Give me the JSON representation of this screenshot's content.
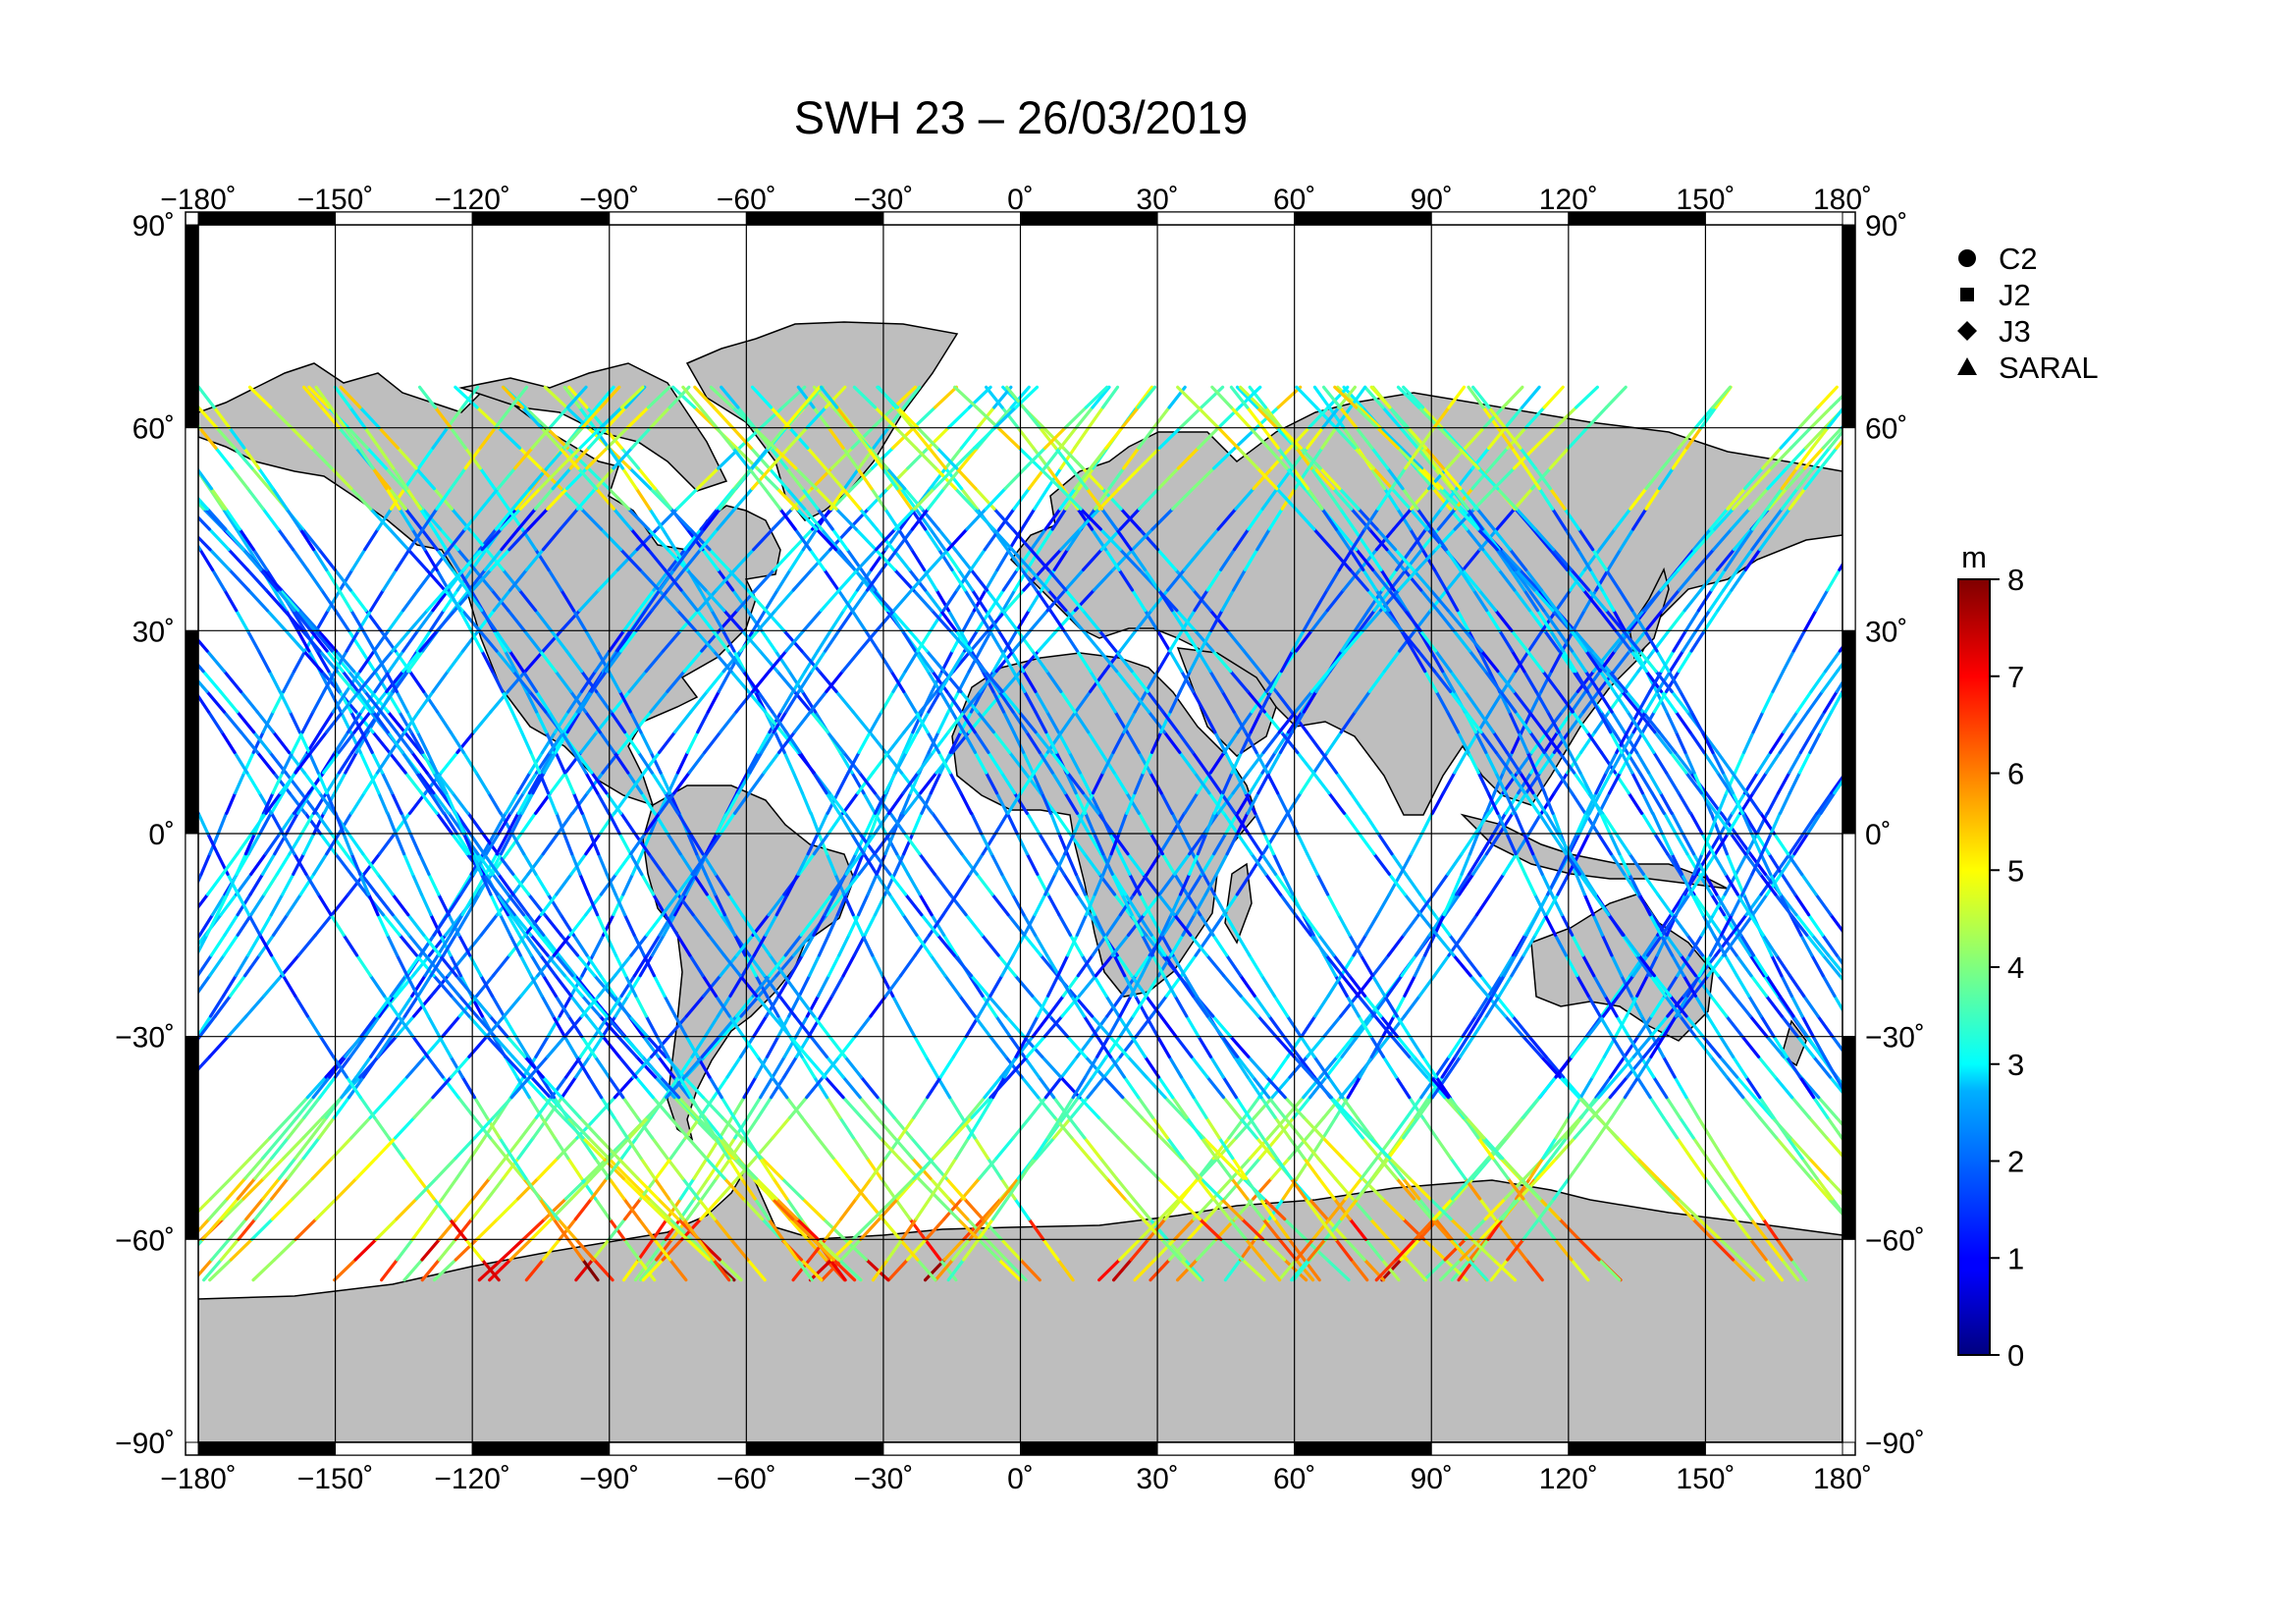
{
  "title": "SWH 23 – 26/03/2019",
  "map": {
    "projection": "equirectangular",
    "lon_range": [
      -180,
      180
    ],
    "lat_range": [
      -90,
      90
    ],
    "lon_ticks": [
      "−180˚",
      "−150˚",
      "−120˚",
      "−90˚",
      "−60˚",
      "−30˚",
      "0˚",
      "30˚",
      "60˚",
      "90˚",
      "120˚",
      "150˚",
      "180˚"
    ],
    "lat_ticks": [
      "90˚",
      "60˚",
      "30˚",
      "0˚",
      "−30˚",
      "−60˚",
      "−90˚"
    ],
    "lon_values": [
      -180,
      -150,
      -120,
      -90,
      -60,
      -30,
      0,
      30,
      60,
      90,
      120,
      150,
      180
    ],
    "lat_values": [
      90,
      60,
      30,
      0,
      -30,
      -60,
      -90
    ],
    "grid": true,
    "land_color": "#bebebe",
    "ocean_color": "#ffffff"
  },
  "legend": {
    "placement": "right",
    "items": [
      {
        "label": "C2",
        "marker": "circle"
      },
      {
        "label": "J2",
        "marker": "square"
      },
      {
        "label": "J3",
        "marker": "diamond"
      },
      {
        "label": "SARAL",
        "marker": "triangle"
      }
    ]
  },
  "colorbar": {
    "unit": "m",
    "min": 0,
    "max": 8,
    "ticks": [
      "0",
      "1",
      "2",
      "3",
      "4",
      "5",
      "6",
      "7",
      "8"
    ],
    "colormap": "jet"
  }
}
